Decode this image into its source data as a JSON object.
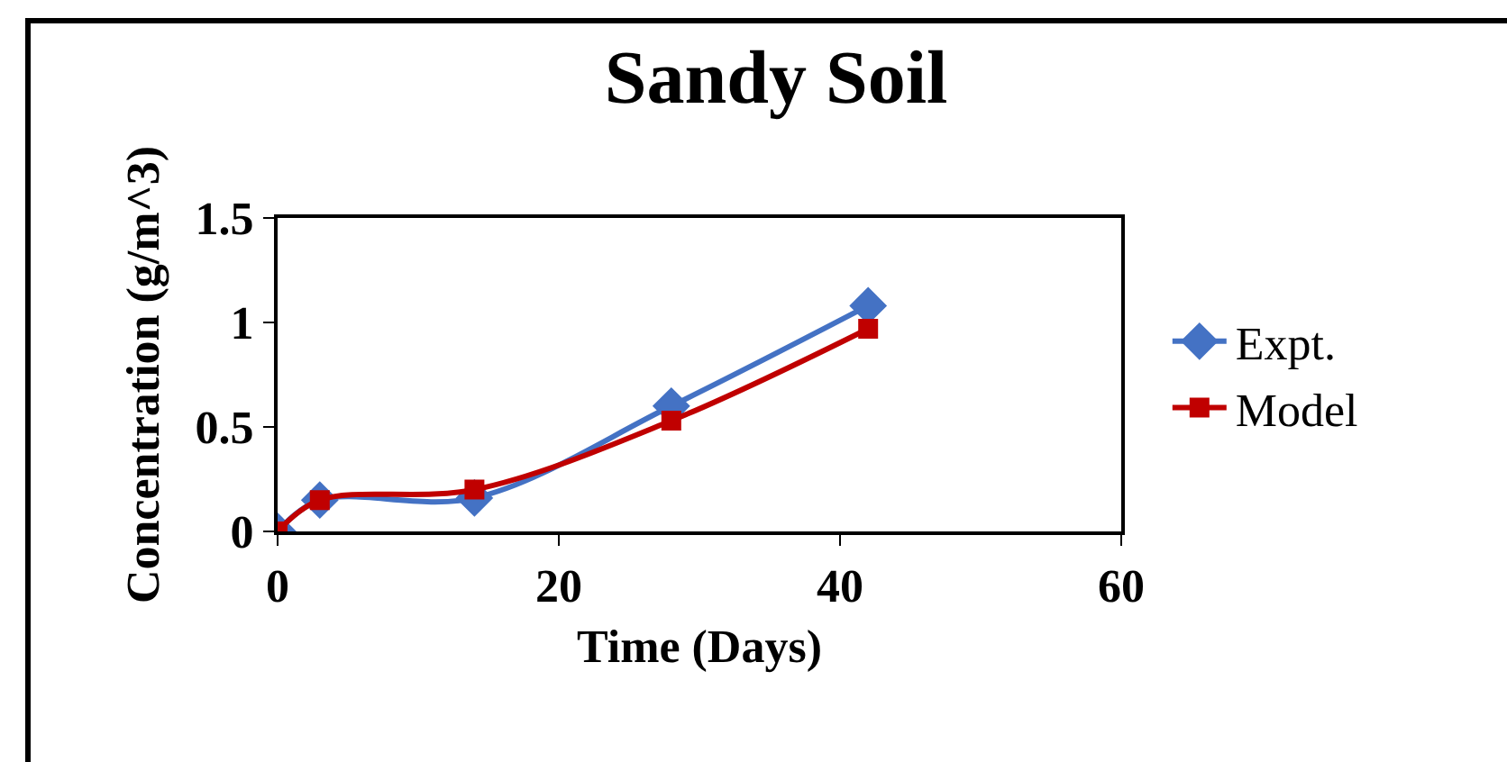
{
  "chart_data": {
    "type": "line",
    "title": "Sandy Soil",
    "xlabel": "Time (Days)",
    "ylabel": "Concentration (g/m^3)",
    "xlim": [
      0,
      60
    ],
    "xticks": [
      0,
      20,
      40,
      60
    ],
    "ylim": [
      0,
      1.5
    ],
    "yticks": [
      0,
      0.5,
      1,
      1.5
    ],
    "grid": false,
    "legend": "right",
    "line_style": "solid",
    "series": [
      {
        "name": "Expt.",
        "color": "#4472c4",
        "marker": "diamond",
        "x": [
          0,
          3,
          14,
          28,
          42
        ],
        "values": [
          0,
          0.15,
          0.16,
          0.6,
          1.08
        ]
      },
      {
        "name": "Model",
        "color": "#c00000",
        "marker": "square",
        "x": [
          0,
          3,
          14,
          28,
          42
        ],
        "values": [
          0,
          0.15,
          0.2,
          0.53,
          0.97
        ]
      }
    ]
  }
}
